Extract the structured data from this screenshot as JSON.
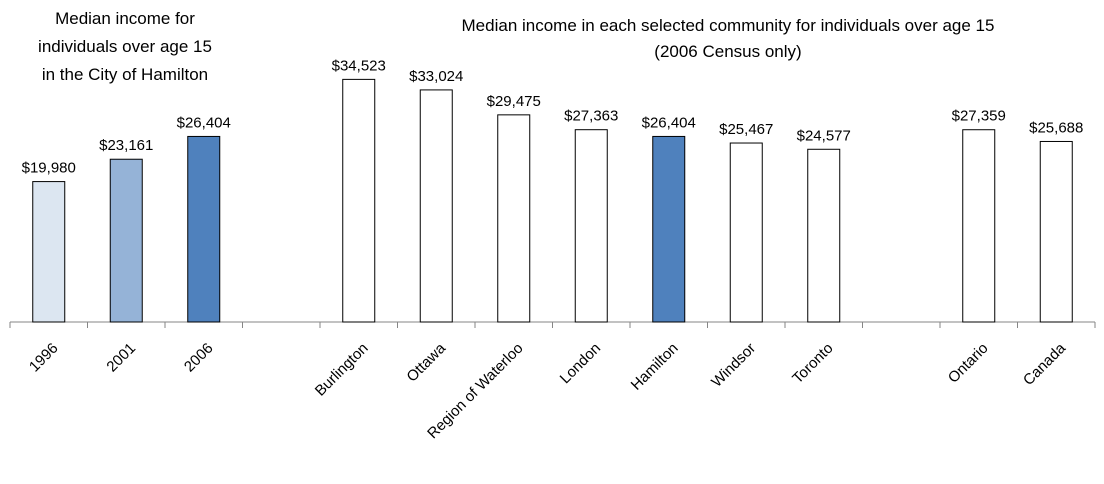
{
  "titles": {
    "left": [
      "Median income for",
      "individuals over age 15",
      "in the City of Hamilton"
    ],
    "right": [
      "Median income in each selected community for individuals over age 15",
      "(2006 Census only)"
    ]
  },
  "chart_data": {
    "type": "bar",
    "categories": [
      "1996",
      "2001",
      "2006",
      "",
      "Burlington",
      "Ottawa",
      "Region of Waterloo",
      "London",
      "Hamilton",
      "Windsor",
      "Toronto",
      "",
      "Ontario",
      "Canada"
    ],
    "values": [
      19980,
      23161,
      26404,
      null,
      34523,
      33024,
      29475,
      27363,
      26404,
      25467,
      24577,
      null,
      27359,
      25688
    ],
    "labels": [
      "$19,980",
      "$23,161",
      "$26,404",
      "",
      "$34,523",
      "$33,024",
      "$29,475",
      "$27,363",
      "$26,404",
      "$25,467",
      "$24,577",
      "",
      "$27,359",
      "$25,688"
    ],
    "fills": [
      "#dce6f1",
      "#95b3d7",
      "#4f81bd",
      "",
      "#ffffff",
      "#ffffff",
      "#ffffff",
      "#ffffff",
      "#4f81bd",
      "#ffffff",
      "#ffffff",
      "",
      "#ffffff",
      "#ffffff"
    ],
    "ylim": [
      0,
      36000
    ],
    "grid": false,
    "legend": "none"
  }
}
